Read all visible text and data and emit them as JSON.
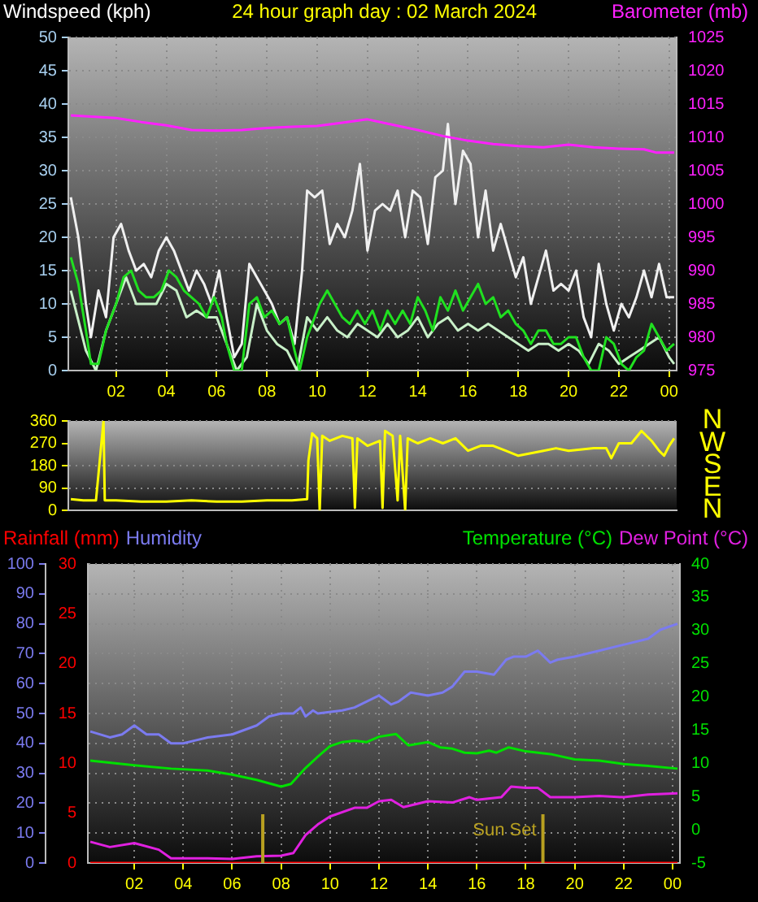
{
  "chart_data": [
    {
      "type": "line",
      "title": "24 hour graph day : 02 March 2024",
      "ylabel": "Windspeed (kph)",
      "y2label": "Barometer (mb)",
      "grid": true,
      "xlim": [
        "2024-03-02T00:06",
        "2024-03-03T00:18"
      ],
      "xticks": [
        {
          "value": "2024-03-02T02:00",
          "label": "02"
        },
        {
          "value": "2024-03-02T04:00",
          "label": "04"
        },
        {
          "value": "2024-03-02T06:00",
          "label": "06"
        },
        {
          "value": "2024-03-02T08:00",
          "label": "08"
        },
        {
          "value": "2024-03-02T10:00",
          "label": "10"
        },
        {
          "value": "2024-03-02T12:00",
          "label": "12"
        },
        {
          "value": "2024-03-02T14:00",
          "label": "14"
        },
        {
          "value": "2024-03-02T16:00",
          "label": "16"
        },
        {
          "value": "2024-03-02T18:00",
          "label": "18"
        },
        {
          "value": "2024-03-02T20:00",
          "label": "20"
        },
        {
          "value": "2024-03-02T22:00",
          "label": "22"
        },
        {
          "value": "2024-03-03T00:00",
          "label": "00"
        }
      ],
      "ylim": [
        0,
        50
      ],
      "yticks": [
        0,
        5,
        10,
        15,
        20,
        25,
        30,
        35,
        40,
        45,
        50
      ],
      "y2lim": [
        975,
        1025
      ],
      "y2ticks": [
        975,
        980,
        985,
        990,
        995,
        1000,
        1005,
        1010,
        1015,
        1020,
        1025
      ],
      "series": [
        {
          "color": "#f0f0f0",
          "x": [
            "2024-03-02T00:12",
            "2024-03-02T00:30",
            "2024-03-02T00:48",
            "2024-03-02T01:00",
            "2024-03-02T01:18",
            "2024-03-02T01:36",
            "2024-03-02T01:54",
            "2024-03-02T02:12",
            "2024-03-02T02:30",
            "2024-03-02T02:48",
            "2024-03-02T03:06",
            "2024-03-02T03:24",
            "2024-03-02T03:42",
            "2024-03-02T04:00",
            "2024-03-02T04:18",
            "2024-03-02T04:36",
            "2024-03-02T04:54",
            "2024-03-02T05:12",
            "2024-03-02T05:30",
            "2024-03-02T05:48",
            "2024-03-02T06:06",
            "2024-03-02T06:24",
            "2024-03-02T06:42",
            "2024-03-02T07:00",
            "2024-03-02T07:18",
            "2024-03-02T07:36",
            "2024-03-02T07:54",
            "2024-03-02T08:12",
            "2024-03-02T08:30",
            "2024-03-02T08:48",
            "2024-03-02T09:06",
            "2024-03-02T09:24",
            "2024-03-02T09:36",
            "2024-03-02T09:54",
            "2024-03-02T10:12",
            "2024-03-02T10:30",
            "2024-03-02T10:48",
            "2024-03-02T11:06",
            "2024-03-02T11:24",
            "2024-03-02T11:42",
            "2024-03-02T12:00",
            "2024-03-02T12:18",
            "2024-03-02T12:36",
            "2024-03-02T12:54",
            "2024-03-02T13:12",
            "2024-03-02T13:30",
            "2024-03-02T13:48",
            "2024-03-02T14:06",
            "2024-03-02T14:24",
            "2024-03-02T14:42",
            "2024-03-02T15:00",
            "2024-03-02T15:12",
            "2024-03-02T15:30",
            "2024-03-02T15:48",
            "2024-03-02T16:06",
            "2024-03-02T16:24",
            "2024-03-02T16:42",
            "2024-03-02T17:00",
            "2024-03-02T17:18",
            "2024-03-02T17:36",
            "2024-03-02T17:54",
            "2024-03-02T18:12",
            "2024-03-02T18:30",
            "2024-03-02T18:48",
            "2024-03-02T19:06",
            "2024-03-02T19:24",
            "2024-03-02T19:42",
            "2024-03-02T20:00",
            "2024-03-02T20:18",
            "2024-03-02T20:36",
            "2024-03-02T20:54",
            "2024-03-02T21:12",
            "2024-03-02T21:30",
            "2024-03-02T21:48",
            "2024-03-02T22:06",
            "2024-03-02T22:24",
            "2024-03-02T22:42",
            "2024-03-02T23:00",
            "2024-03-02T23:18",
            "2024-03-02T23:36",
            "2024-03-02T23:54",
            "2024-03-03T00:12"
          ],
          "values": [
            26,
            20,
            10,
            5,
            12,
            8,
            20,
            22,
            18,
            15,
            16,
            14,
            18,
            20,
            18,
            15,
            12,
            15,
            13,
            10,
            15,
            8,
            2,
            4,
            16,
            14,
            12,
            10,
            7,
            8,
            4,
            15,
            27,
            26,
            27,
            19,
            22,
            20,
            24,
            31,
            18,
            24,
            25,
            24,
            27,
            20,
            27,
            26,
            19,
            29,
            30,
            37,
            25,
            33,
            31,
            20,
            27,
            18,
            22,
            18,
            14,
            17,
            10,
            14,
            18,
            12,
            13,
            12,
            15,
            8,
            5,
            16,
            10,
            6,
            10,
            8,
            11,
            15,
            11,
            16,
            11,
            11
          ]
        },
        {
          "color": "#c8f0c8",
          "x": [
            "2024-03-02T00:12",
            "2024-03-02T00:48",
            "2024-03-02T01:12",
            "2024-03-02T01:36",
            "2024-03-02T02:00",
            "2024-03-02T02:24",
            "2024-03-02T02:48",
            "2024-03-02T03:12",
            "2024-03-02T03:36",
            "2024-03-02T04:00",
            "2024-03-02T04:24",
            "2024-03-02T04:48",
            "2024-03-02T05:12",
            "2024-03-02T05:36",
            "2024-03-02T06:00",
            "2024-03-02T06:24",
            "2024-03-02T06:48",
            "2024-03-02T07:12",
            "2024-03-02T07:36",
            "2024-03-02T08:00",
            "2024-03-02T08:24",
            "2024-03-02T08:48",
            "2024-03-02T09:12",
            "2024-03-02T09:36",
            "2024-03-02T10:00",
            "2024-03-02T10:24",
            "2024-03-02T10:48",
            "2024-03-02T11:12",
            "2024-03-02T11:36",
            "2024-03-02T12:00",
            "2024-03-02T12:24",
            "2024-03-02T12:48",
            "2024-03-02T13:12",
            "2024-03-02T13:36",
            "2024-03-02T14:00",
            "2024-03-02T14:24",
            "2024-03-02T14:48",
            "2024-03-02T15:12",
            "2024-03-02T15:36",
            "2024-03-02T16:00",
            "2024-03-02T16:24",
            "2024-03-02T16:48",
            "2024-03-02T17:12",
            "2024-03-02T17:36",
            "2024-03-02T18:00",
            "2024-03-02T18:24",
            "2024-03-02T18:48",
            "2024-03-02T19:12",
            "2024-03-02T19:36",
            "2024-03-02T20:00",
            "2024-03-02T20:24",
            "2024-03-02T20:48",
            "2024-03-02T21:12",
            "2024-03-02T21:36",
            "2024-03-02T22:00",
            "2024-03-02T22:24",
            "2024-03-02T22:48",
            "2024-03-02T23:12",
            "2024-03-02T23:36",
            "2024-03-03T00:00",
            "2024-03-03T00:12"
          ],
          "values": [
            12,
            3,
            0,
            6,
            10,
            14,
            10,
            10,
            10,
            13,
            12,
            8,
            9,
            8,
            8,
            4,
            0,
            2,
            10,
            6,
            4,
            3,
            0,
            8,
            6,
            8,
            6,
            5,
            7,
            6,
            5,
            7,
            5,
            6,
            8,
            5,
            7,
            8,
            6,
            7,
            6,
            7,
            6,
            5,
            4,
            3,
            4,
            4,
            3,
            4,
            3,
            1,
            4,
            3,
            1,
            2,
            3,
            4,
            5,
            2,
            1
          ]
        },
        {
          "color": "#20e020",
          "x": [
            "2024-03-02T00:12",
            "2024-03-02T00:30",
            "2024-03-02T00:48",
            "2024-03-02T01:00",
            "2024-03-02T01:18",
            "2024-03-02T01:36",
            "2024-03-02T02:00",
            "2024-03-02T02:18",
            "2024-03-02T02:36",
            "2024-03-02T02:54",
            "2024-03-02T03:12",
            "2024-03-02T03:30",
            "2024-03-02T03:48",
            "2024-03-02T04:06",
            "2024-03-02T04:24",
            "2024-03-02T04:42",
            "2024-03-02T05:00",
            "2024-03-02T05:18",
            "2024-03-02T05:36",
            "2024-03-02T05:54",
            "2024-03-02T06:12",
            "2024-03-02T06:24",
            "2024-03-02T06:42",
            "2024-03-02T07:00",
            "2024-03-02T07:18",
            "2024-03-02T07:36",
            "2024-03-02T07:54",
            "2024-03-02T08:12",
            "2024-03-02T08:30",
            "2024-03-02T08:48",
            "2024-03-02T09:06",
            "2024-03-02T09:18",
            "2024-03-02T09:36",
            "2024-03-02T09:54",
            "2024-03-02T10:06",
            "2024-03-02T10:24",
            "2024-03-02T10:42",
            "2024-03-02T11:00",
            "2024-03-02T11:18",
            "2024-03-02T11:36",
            "2024-03-02T11:54",
            "2024-03-02T12:12",
            "2024-03-02T12:30",
            "2024-03-02T12:48",
            "2024-03-02T13:06",
            "2024-03-02T13:24",
            "2024-03-02T13:42",
            "2024-03-02T14:00",
            "2024-03-02T14:18",
            "2024-03-02T14:36",
            "2024-03-02T14:54",
            "2024-03-02T15:12",
            "2024-03-02T15:30",
            "2024-03-02T15:48",
            "2024-03-02T16:06",
            "2024-03-02T16:24",
            "2024-03-02T16:42",
            "2024-03-02T17:00",
            "2024-03-02T17:18",
            "2024-03-02T17:36",
            "2024-03-02T17:54",
            "2024-03-02T18:12",
            "2024-03-02T18:30",
            "2024-03-02T18:48",
            "2024-03-02T19:06",
            "2024-03-02T19:24",
            "2024-03-02T19:42",
            "2024-03-02T20:00",
            "2024-03-02T20:18",
            "2024-03-02T20:36",
            "2024-03-02T20:54",
            "2024-03-02T21:12",
            "2024-03-02T21:30",
            "2024-03-02T21:48",
            "2024-03-02T22:06",
            "2024-03-02T22:24",
            "2024-03-02T22:42",
            "2024-03-02T23:00",
            "2024-03-02T23:18",
            "2024-03-02T23:36",
            "2024-03-02T23:54",
            "2024-03-03T00:12"
          ],
          "values": [
            17,
            13,
            6,
            1,
            1,
            6,
            10,
            14,
            15,
            12,
            11,
            11,
            12,
            15,
            14,
            12,
            11,
            10,
            8,
            11,
            8,
            4,
            0,
            0,
            10,
            11,
            8,
            9,
            7,
            8,
            3,
            0,
            5,
            8,
            10,
            12,
            10,
            8,
            7,
            9,
            7,
            9,
            6,
            9,
            7,
            9,
            7,
            11,
            9,
            6,
            11,
            9,
            12,
            9,
            11,
            13,
            10,
            11,
            8,
            9,
            7,
            6,
            4,
            6,
            6,
            4,
            4,
            5,
            5,
            2,
            0,
            0,
            5,
            4,
            1,
            0,
            2,
            3,
            7,
            5,
            3,
            4
          ]
        },
        {
          "color": "#ff20ff",
          "axis": "y2",
          "x": [
            "2024-03-02T00:12",
            "2024-03-02T02:00",
            "2024-03-02T03:00",
            "2024-03-02T04:00",
            "2024-03-02T05:00",
            "2024-03-02T06:00",
            "2024-03-02T07:00",
            "2024-03-02T08:00",
            "2024-03-02T09:00",
            "2024-03-02T10:00",
            "2024-03-02T11:00",
            "2024-03-02T12:00",
            "2024-03-02T13:00",
            "2024-03-02T14:00",
            "2024-03-02T15:00",
            "2024-03-02T16:00",
            "2024-03-02T17:00",
            "2024-03-02T18:00",
            "2024-03-02T19:00",
            "2024-03-02T20:00",
            "2024-03-02T21:00",
            "2024-03-02T22:00",
            "2024-03-02T23:00",
            "2024-03-02T23:30",
            "2024-03-03T00:12"
          ],
          "values": [
            1013.3,
            1012.9,
            1012.3,
            1011.8,
            1011.1,
            1011.0,
            1011.1,
            1011.4,
            1011.6,
            1011.7,
            1012.2,
            1012.7,
            1011.9,
            1011.1,
            1010.2,
            1009.5,
            1009.0,
            1008.7,
            1008.5,
            1008.9,
            1008.5,
            1008.3,
            1008.2,
            1007.7,
            1007.7
          ]
        }
      ]
    },
    {
      "type": "line",
      "grid": "y",
      "tick_labels": "y",
      "annotations": [
        "N",
        "W",
        "S",
        "E",
        "N"
      ],
      "xlim": [
        "2024-03-02T00:06",
        "2024-03-03T00:18"
      ],
      "ylim": [
        0,
        360
      ],
      "yticks": [
        0,
        90,
        180,
        270,
        360
      ],
      "series": [
        {
          "color": "#ffff00",
          "x": [
            "2024-03-02T00:12",
            "2024-03-02T00:42",
            "2024-03-02T01:12",
            "2024-03-02T01:30",
            "2024-03-02T01:33",
            "2024-03-02T02:00",
            "2024-03-02T03:00",
            "2024-03-02T04:00",
            "2024-03-02T05:00",
            "2024-03-02T06:00",
            "2024-03-02T07:00",
            "2024-03-02T08:00",
            "2024-03-02T09:00",
            "2024-03-02T09:36",
            "2024-03-02T09:39",
            "2024-03-02T09:48",
            "2024-03-02T10:00",
            "2024-03-02T10:06",
            "2024-03-02T10:12",
            "2024-03-02T10:30",
            "2024-03-02T11:00",
            "2024-03-02T11:24",
            "2024-03-02T11:30",
            "2024-03-02T11:36",
            "2024-03-02T12:00",
            "2024-03-02T12:30",
            "2024-03-02T12:36",
            "2024-03-02T12:42",
            "2024-03-02T13:00",
            "2024-03-02T13:12",
            "2024-03-02T13:18",
            "2024-03-02T13:30",
            "2024-03-02T13:36",
            "2024-03-02T14:00",
            "2024-03-02T14:30",
            "2024-03-02T15:00",
            "2024-03-02T15:30",
            "2024-03-02T16:00",
            "2024-03-02T16:30",
            "2024-03-02T17:00",
            "2024-03-02T17:30",
            "2024-03-02T18:00",
            "2024-03-02T18:30",
            "2024-03-02T19:00",
            "2024-03-02T19:30",
            "2024-03-02T20:00",
            "2024-03-02T21:00",
            "2024-03-02T21:30",
            "2024-03-02T21:42",
            "2024-03-02T22:00",
            "2024-03-02T22:30",
            "2024-03-02T22:54",
            "2024-03-02T23:18",
            "2024-03-02T23:36",
            "2024-03-02T23:48",
            "2024-03-03T00:00",
            "2024-03-03T00:12"
          ],
          "values": [
            45,
            40,
            40,
            360,
            40,
            40,
            35,
            35,
            40,
            35,
            35,
            40,
            40,
            45,
            200,
            310,
            290,
            0,
            300,
            280,
            300,
            290,
            10,
            290,
            260,
            280,
            10,
            320,
            300,
            40,
            300,
            0,
            290,
            270,
            290,
            270,
            290,
            240,
            260,
            260,
            240,
            220,
            230,
            240,
            250,
            240,
            250,
            250,
            210,
            270,
            270,
            320,
            280,
            240,
            220,
            260,
            290
          ]
        }
      ]
    },
    {
      "type": "line",
      "grid": true,
      "legend": "top",
      "xlim": [
        "2024-03-02T00:06",
        "2024-03-03T00:18"
      ],
      "xticks": [
        {
          "value": "2024-03-02T02:00",
          "label": "02"
        },
        {
          "value": "2024-03-02T04:00",
          "label": "04"
        },
        {
          "value": "2024-03-02T06:00",
          "label": "06"
        },
        {
          "value": "2024-03-02T08:00",
          "label": "08"
        },
        {
          "value": "2024-03-02T10:00",
          "label": "10"
        },
        {
          "value": "2024-03-02T12:00",
          "label": "12"
        },
        {
          "value": "2024-03-02T14:00",
          "label": "14"
        },
        {
          "value": "2024-03-02T16:00",
          "label": "16"
        },
        {
          "value": "2024-03-02T18:00",
          "label": "18"
        },
        {
          "value": "2024-03-02T20:00",
          "label": "20"
        },
        {
          "value": "2024-03-02T22:00",
          "label": "22"
        },
        {
          "value": "2024-03-03T00:00",
          "label": "00"
        }
      ],
      "ylim": [
        0,
        100
      ],
      "yticks": [
        0,
        10,
        20,
        30,
        40,
        50,
        60,
        70,
        80,
        90,
        100
      ],
      "y2lim": [
        0,
        30
      ],
      "y2ticks": [
        0,
        5,
        10,
        15,
        20,
        25,
        30
      ],
      "y3lim": [
        -5,
        40
      ],
      "y3ticks": [
        -5,
        0,
        5,
        10,
        15,
        20,
        25,
        30,
        35,
        40
      ],
      "ref_lines": [
        {
          "axis": "x",
          "value": "2024-03-02T07:15",
          "color": "#b8a020"
        },
        {
          "axis": "x",
          "value": "2024-03-02T18:42",
          "label": "Sun Set",
          "color": "#b8a020"
        }
      ],
      "series": [
        {
          "name": "Rainfall (mm)",
          "color": "#ff0000",
          "axis": "y2",
          "x": [
            "2024-03-02T00:12",
            "2024-03-03T00:12"
          ],
          "values": [
            0,
            0
          ]
        },
        {
          "name": "Humidity",
          "color": "#7b7bf0",
          "axis": "y",
          "x": [
            "2024-03-02T00:12",
            "2024-03-02T01:00",
            "2024-03-02T01:30",
            "2024-03-02T02:00",
            "2024-03-02T02:30",
            "2024-03-02T03:00",
            "2024-03-02T03:30",
            "2024-03-02T04:00",
            "2024-03-02T04:30",
            "2024-03-02T05:00",
            "2024-03-02T06:00",
            "2024-03-02T07:00",
            "2024-03-02T07:30",
            "2024-03-02T08:00",
            "2024-03-02T08:30",
            "2024-03-02T08:48",
            "2024-03-02T09:00",
            "2024-03-02T09:18",
            "2024-03-02T09:30",
            "2024-03-02T10:30",
            "2024-03-02T11:00",
            "2024-03-02T12:00",
            "2024-03-02T12:30",
            "2024-03-02T12:48",
            "2024-03-02T13:18",
            "2024-03-02T14:00",
            "2024-03-02T14:36",
            "2024-03-02T15:00",
            "2024-03-02T15:30",
            "2024-03-02T16:00",
            "2024-03-02T16:42",
            "2024-03-02T17:12",
            "2024-03-02T17:30",
            "2024-03-02T18:00",
            "2024-03-02T18:30",
            "2024-03-02T19:00",
            "2024-03-02T19:18",
            "2024-03-02T20:00",
            "2024-03-02T21:00",
            "2024-03-02T22:00",
            "2024-03-02T23:00",
            "2024-03-02T23:30",
            "2024-03-03T00:12"
          ],
          "values": [
            44,
            42,
            43,
            46,
            43,
            43,
            40,
            40,
            41,
            42,
            43,
            46,
            49,
            50,
            50,
            52,
            49,
            51,
            50,
            51,
            52,
            56,
            53,
            54,
            57,
            56,
            57,
            59,
            64,
            64,
            63,
            68,
            69,
            69,
            71,
            67,
            68,
            69,
            71,
            73,
            75,
            78,
            80
          ]
        },
        {
          "name": "Temperature (°C)",
          "color": "#00e000",
          "axis": "y3",
          "x": [
            "2024-03-02T00:12",
            "2024-03-02T02:00",
            "2024-03-02T03:30",
            "2024-03-02T05:00",
            "2024-03-02T06:00",
            "2024-03-02T07:00",
            "2024-03-02T08:00",
            "2024-03-02T08:24",
            "2024-03-02T09:00",
            "2024-03-02T09:30",
            "2024-03-02T10:00",
            "2024-03-02T10:30",
            "2024-03-02T11:00",
            "2024-03-02T11:30",
            "2024-03-02T12:00",
            "2024-03-02T12:42",
            "2024-03-02T13:12",
            "2024-03-02T14:00",
            "2024-03-02T14:30",
            "2024-03-02T15:00",
            "2024-03-02T15:30",
            "2024-03-02T16:00",
            "2024-03-02T16:30",
            "2024-03-02T16:48",
            "2024-03-02T17:18",
            "2024-03-02T18:00",
            "2024-03-02T19:00",
            "2024-03-02T20:00",
            "2024-03-02T21:00",
            "2024-03-02T22:00",
            "2024-03-02T23:00",
            "2024-03-03T00:12"
          ],
          "values": [
            10.4,
            9.7,
            9.2,
            8.9,
            8.3,
            7.5,
            6.5,
            6.9,
            9.3,
            11.0,
            12.6,
            13.2,
            13.4,
            13.2,
            14.0,
            14.4,
            12.7,
            13.2,
            12.4,
            12.2,
            11.6,
            11.5,
            11.9,
            11.6,
            12.4,
            11.8,
            11.4,
            10.6,
            10.4,
            9.9,
            9.6,
            9.2
          ]
        },
        {
          "name": "Dew Point (°C)",
          "color": "#e020e0",
          "axis": "y3",
          "x": [
            "2024-03-02T00:12",
            "2024-03-02T01:00",
            "2024-03-02T02:00",
            "2024-03-02T03:00",
            "2024-03-02T03:30",
            "2024-03-02T05:00",
            "2024-03-02T06:00",
            "2024-03-02T07:00",
            "2024-03-02T08:00",
            "2024-03-02T08:30",
            "2024-03-02T09:00",
            "2024-03-02T09:30",
            "2024-03-02T10:00",
            "2024-03-02T11:00",
            "2024-03-02T11:30",
            "2024-03-02T12:00",
            "2024-03-02T12:30",
            "2024-03-02T13:00",
            "2024-03-02T14:00",
            "2024-03-02T15:00",
            "2024-03-02T15:42",
            "2024-03-02T16:00",
            "2024-03-02T17:00",
            "2024-03-02T17:24",
            "2024-03-02T18:00",
            "2024-03-02T18:30",
            "2024-03-02T19:00",
            "2024-03-02T20:00",
            "2024-03-02T21:00",
            "2024-03-02T22:00",
            "2024-03-02T23:00",
            "2024-03-03T00:12"
          ],
          "values": [
            -1.8,
            -2.6,
            -2.0,
            -3.0,
            -4.3,
            -4.3,
            -4.4,
            -4.0,
            -3.9,
            -3.5,
            -0.8,
            0.8,
            2.0,
            3.3,
            3.3,
            4.3,
            4.5,
            3.4,
            4.3,
            4.1,
            4.9,
            4.5,
            4.9,
            6.5,
            6.3,
            6.3,
            4.9,
            4.9,
            5.1,
            4.9,
            5.3,
            5.5
          ]
        }
      ]
    }
  ]
}
